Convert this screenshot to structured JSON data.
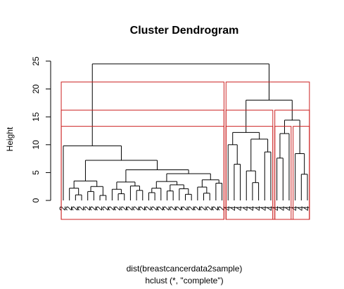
{
  "chart_data": {
    "type": "dendrogram",
    "title": "Cluster Dendrogram",
    "ylabel": "Height",
    "xlabel": "dist(breastcancerdata2sample)",
    "subtitle": "hclust (*, \"complete\")",
    "ylim": [
      -3.4,
      26
    ],
    "yticks": [
      0,
      5,
      10,
      15,
      20,
      25
    ],
    "line_color": "#000000",
    "rect_color": "#cc2222",
    "rect_k": [
      2,
      3,
      4
    ],
    "tree": {
      "height": 24.5,
      "children": [
        {
          "height": 9.8,
          "children": [
            {
              "label": "2"
            },
            {
              "height": 7.2,
              "children": [
                {
                  "height": 3.5,
                  "children": [
                    {
                      "height": 2.2,
                      "children": [
                        {
                          "label": "2"
                        },
                        {
                          "height": 1.0,
                          "children": [
                            {
                              "label": "2"
                            },
                            {
                              "label": "2"
                            }
                          ]
                        }
                      ]
                    },
                    {
                      "height": 2.5,
                      "children": [
                        {
                          "height": 1.6,
                          "children": [
                            {
                              "label": "2"
                            },
                            {
                              "label": "2"
                            }
                          ]
                        },
                        {
                          "height": 0.9,
                          "children": [
                            {
                              "label": "2"
                            },
                            {
                              "label": "2"
                            }
                          ]
                        }
                      ]
                    }
                  ]
                },
                {
                  "height": 5.5,
                  "children": [
                    {
                      "height": 3.3,
                      "children": [
                        {
                          "height": 2.0,
                          "children": [
                            {
                              "label": "2"
                            },
                            {
                              "height": 1.2,
                              "children": [
                                {
                                  "label": "2"
                                },
                                {
                                  "label": "2"
                                }
                              ]
                            }
                          ]
                        },
                        {
                          "height": 2.6,
                          "children": [
                            {
                              "label": "2"
                            },
                            {
                              "height": 1.8,
                              "children": [
                                {
                                  "label": "2"
                                },
                                {
                                  "label": "2"
                                }
                              ]
                            }
                          ]
                        }
                      ]
                    },
                    {
                      "height": 4.8,
                      "children": [
                        {
                          "height": 3.4,
                          "children": [
                            {
                              "height": 2.2,
                              "children": [
                                {
                                  "height": 1.4,
                                  "children": [
                                    {
                                      "label": "2"
                                    },
                                    {
                                      "label": "2"
                                    }
                                  ]
                                },
                                {
                                  "label": "2"
                                }
                              ]
                            },
                            {
                              "height": 2.8,
                              "children": [
                                {
                                  "height": 1.7,
                                  "children": [
                                    {
                                      "label": "2"
                                    },
                                    {
                                      "label": "2"
                                    }
                                  ]
                                },
                                {
                                  "height": 2.1,
                                  "children": [
                                    {
                                      "label": "2"
                                    },
                                    {
                                      "height": 1.1,
                                      "children": [
                                        {
                                          "label": "2"
                                        },
                                        {
                                          "label": "2"
                                        }
                                      ]
                                    }
                                  ]
                                }
                              ]
                            }
                          ]
                        },
                        {
                          "height": 3.7,
                          "children": [
                            {
                              "height": 2.4,
                              "children": [
                                {
                                  "label": "2"
                                },
                                {
                                  "height": 1.3,
                                  "children": [
                                    {
                                      "label": "2"
                                    },
                                    {
                                      "label": "2"
                                    }
                                  ]
                                }
                              ]
                            },
                            {
                              "height": 3.1,
                              "children": [
                                {
                                  "label": "2"
                                },
                                {
                                  "label": "2"
                                }
                              ]
                            }
                          ]
                        }
                      ]
                    }
                  ]
                }
              ]
            }
          ]
        },
        {
          "height": 18.0,
          "children": [
            {
              "height": 12.2,
              "children": [
                {
                  "height": 10.0,
                  "children": [
                    {
                      "label": "4"
                    },
                    {
                      "height": 6.5,
                      "children": [
                        {
                          "label": "4"
                        },
                        {
                          "label": "4"
                        }
                      ]
                    }
                  ]
                },
                {
                  "height": 11.0,
                  "children": [
                    {
                      "height": 5.3,
                      "children": [
                        {
                          "label": "4"
                        },
                        {
                          "height": 3.2,
                          "children": [
                            {
                              "label": "4"
                            },
                            {
                              "label": "4"
                            }
                          ]
                        }
                      ]
                    },
                    {
                      "height": 8.7,
                      "children": [
                        {
                          "label": "4"
                        },
                        {
                          "label": "4"
                        }
                      ]
                    }
                  ]
                }
              ]
            },
            {
              "height": 14.4,
              "children": [
                {
                  "height": 12.0,
                  "children": [
                    {
                      "height": 7.6,
                      "children": [
                        {
                          "label": "4"
                        },
                        {
                          "label": "4"
                        }
                      ]
                    },
                    {
                      "label": "4"
                    }
                  ]
                },
                {
                  "height": 8.4,
                  "children": [
                    {
                      "label": "4"
                    },
                    {
                      "height": 4.7,
                      "children": [
                        {
                          "label": "4"
                        },
                        {
                          "label": "4"
                        }
                      ]
                    }
                  ]
                }
              ]
            }
          ]
        }
      ]
    }
  }
}
